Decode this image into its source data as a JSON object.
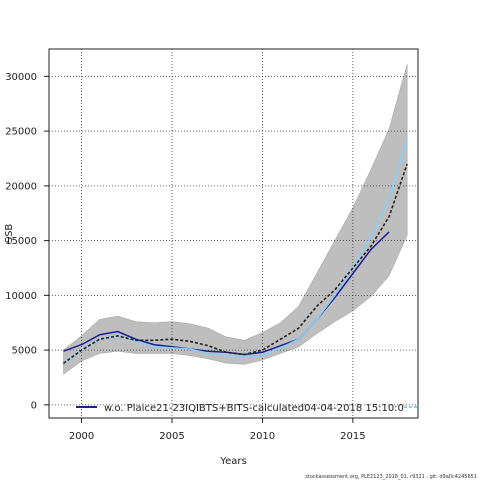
{
  "chart_data": {
    "type": "line",
    "xlabel": "Years",
    "ylabel": "SSB",
    "xlim": [
      1998.2,
      2018.6
    ],
    "ylim": [
      -1200,
      32500
    ],
    "x_ticks": [
      2000,
      2005,
      2010,
      2015
    ],
    "y_ticks": [
      0,
      5000,
      10000,
      15000,
      20000,
      25000,
      30000
    ],
    "grid": true,
    "band": {
      "x": [
        1999,
        2000,
        2001,
        2002,
        2003,
        2004,
        2005,
        2006,
        2007,
        2008,
        2009,
        2010,
        2011,
        2012,
        2013,
        2014,
        2015,
        2016,
        2017,
        2018
      ],
      "upper": [
        5000,
        6300,
        7800,
        8100,
        7600,
        7500,
        7600,
        7400,
        7000,
        6200,
        5900,
        6600,
        7500,
        9000,
        12000,
        15000,
        18000,
        21500,
        25200,
        31100
      ],
      "lower": [
        2800,
        4000,
        4700,
        4900,
        4700,
        4700,
        4700,
        4500,
        4200,
        3800,
        3700,
        4100,
        4700,
        5300,
        6500,
        7600,
        8600,
        9900,
        11800,
        15500
      ],
      "color": "#bebebe"
    },
    "series": [
      {
        "x": [
          1999,
          2000,
          2001,
          2002,
          2003,
          2004,
          2005,
          2006,
          2007,
          2008,
          2009,
          2010,
          2011,
          2012,
          2013,
          2014,
          2015,
          2016,
          2017
        ],
        "values": [
          4900,
          5500,
          6400,
          6700,
          6000,
          5500,
          5300,
          5100,
          4900,
          4800,
          4600,
          4800,
          5400,
          6000,
          7800,
          9800,
          12000,
          14200,
          15800
        ],
        "color": "#1e1e96",
        "width": 1.5,
        "dash": ""
      },
      {
        "x": [
          1999,
          2000,
          2001,
          2002,
          2003,
          2004,
          2005,
          2006,
          2007,
          2008,
          2009,
          2010,
          2011,
          2012,
          2013,
          2014,
          2015,
          2016,
          2017,
          2018
        ],
        "values": [
          3800,
          5000,
          6000,
          6400,
          5800,
          5300,
          5200,
          5100,
          4700,
          4500,
          4300,
          4500,
          5200,
          6000,
          7800,
          10000,
          12600,
          15400,
          18800,
          24300
        ],
        "color": "#87cefa",
        "width": 1.5,
        "dash": ""
      },
      {
        "x": [
          1999,
          2000,
          2001,
          2002,
          2003,
          2004,
          2005,
          2006,
          2007,
          2008,
          2009,
          2010,
          2011,
          2012,
          2013,
          2014,
          2015,
          2016,
          2017,
          2018
        ],
        "values": [
          3800,
          5000,
          6000,
          6300,
          5900,
          5900,
          6000,
          5800,
          5400,
          4800,
          4600,
          5000,
          6000,
          7000,
          9000,
          10500,
          12500,
          14500,
          17200,
          22000
        ],
        "color": "#222222",
        "width": 1.6,
        "dash": "3,2"
      }
    ],
    "legend": {
      "entries": [
        {
          "label": "w.o. Plaice21-23IQIBTS+BITS-calculated04-04-2018 15:10:0",
          "color": "#1e1e96"
        },
        {
          "label": "",
          "color": "#87cefa"
        }
      ],
      "placement": "bottom"
    }
  },
  "footer_text": "stockassessment.org, PLE2123_2018_01, r9321 , git: d9a0c4245651"
}
